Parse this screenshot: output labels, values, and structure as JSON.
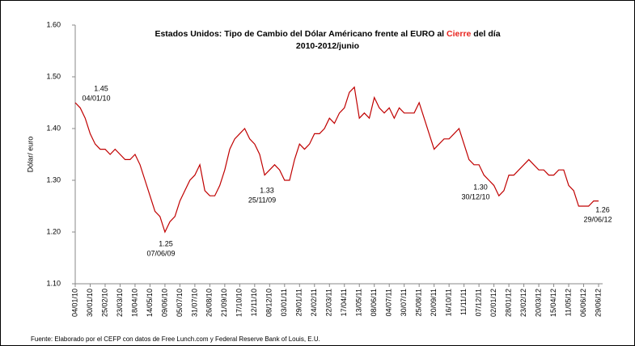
{
  "chart_data": {
    "type": "line",
    "title_parts": [
      "Estados Unidos: Tipo de Cambio del Dólar Américano frente al EURO al ",
      "Cierre",
      " del día"
    ],
    "highlight_color": "#e8231e",
    "subtitle": "2010-2012/junio",
    "y_label": "Dólar/ euro",
    "source": "Fuente: Elaborado por el CEFP con datos de Free Lunch.com y Federal Reserve Bank of Louis, E.U.",
    "ylim": [
      1.1,
      1.6
    ],
    "yticks": [
      {
        "value": 1.1,
        "label": "1.10"
      },
      {
        "value": 1.2,
        "label": "1.20"
      },
      {
        "value": 1.3,
        "label": "1.30"
      },
      {
        "value": 1.4,
        "label": "1.40"
      },
      {
        "value": 1.5,
        "label": "1.50"
      },
      {
        "value": 1.6,
        "label": "1.60"
      }
    ],
    "categories": [
      "04/01/10",
      null,
      null,
      "30/01/10",
      null,
      null,
      "25/02/10",
      null,
      null,
      "23/03/10",
      null,
      null,
      "18/04/10",
      null,
      null,
      "14/05/10",
      null,
      null,
      "09/06/10",
      null,
      null,
      "05/07/10",
      null,
      null,
      "31/07/10",
      null,
      null,
      "26/08/10",
      null,
      null,
      "21/09/10",
      null,
      null,
      "17/10/10",
      null,
      null,
      "12/11/10",
      null,
      null,
      "08/12/10",
      null,
      null,
      "03/01/11",
      null,
      null,
      "29/01/11",
      null,
      null,
      "24/02/11",
      null,
      null,
      "22/03/11",
      null,
      null,
      "17/04/11",
      null,
      null,
      "13/05/11",
      null,
      null,
      "08/06/11",
      null,
      null,
      "04/07/11",
      null,
      null,
      "30/07/11",
      null,
      null,
      "25/08/11",
      null,
      null,
      "20/09/11",
      null,
      null,
      "16/10/11",
      null,
      null,
      "11/11/11",
      null,
      null,
      "07/12/11",
      null,
      null,
      "02/01/12",
      null,
      null,
      "28/01/12",
      null,
      null,
      "23/02/12",
      null,
      null,
      "20/03/12",
      null,
      null,
      "15/04/12",
      null,
      null,
      "11/05/12",
      null,
      null,
      "06/06/12",
      null,
      null,
      "29/06/12"
    ],
    "series": [
      {
        "color": "#c00000",
        "values": [
          1.45,
          1.44,
          1.42,
          1.39,
          1.37,
          1.36,
          1.36,
          1.35,
          1.36,
          1.35,
          1.34,
          1.34,
          1.35,
          1.33,
          1.3,
          1.27,
          1.24,
          1.23,
          1.2,
          1.22,
          1.23,
          1.26,
          1.28,
          1.3,
          1.31,
          1.33,
          1.28,
          1.27,
          1.27,
          1.29,
          1.32,
          1.36,
          1.38,
          1.39,
          1.4,
          1.38,
          1.37,
          1.35,
          1.31,
          1.32,
          1.33,
          1.32,
          1.3,
          1.3,
          1.34,
          1.37,
          1.36,
          1.37,
          1.39,
          1.39,
          1.4,
          1.42,
          1.41,
          1.43,
          1.44,
          1.47,
          1.48,
          1.42,
          1.43,
          1.42,
          1.46,
          1.44,
          1.43,
          1.44,
          1.42,
          1.44,
          1.43,
          1.43,
          1.43,
          1.45,
          1.42,
          1.39,
          1.36,
          1.37,
          1.38,
          1.38,
          1.39,
          1.4,
          1.37,
          1.34,
          1.33,
          1.33,
          1.31,
          1.3,
          1.29,
          1.27,
          1.28,
          1.31,
          1.31,
          1.32,
          1.33,
          1.34,
          1.33,
          1.32,
          1.32,
          1.31,
          1.31,
          1.32,
          1.32,
          1.29,
          1.28,
          1.25,
          1.25,
          1.25,
          1.26,
          1.26
        ]
      }
    ],
    "annotations": [
      {
        "value": "1.45",
        "date": "04/01/10"
      },
      {
        "value": "1.25",
        "date": "07/06/09"
      },
      {
        "value": "1.33",
        "date": "25/11/09"
      },
      {
        "value": "1.30",
        "date": "30/12/10"
      },
      {
        "value": "1.26",
        "date": "29/06/12"
      }
    ]
  }
}
